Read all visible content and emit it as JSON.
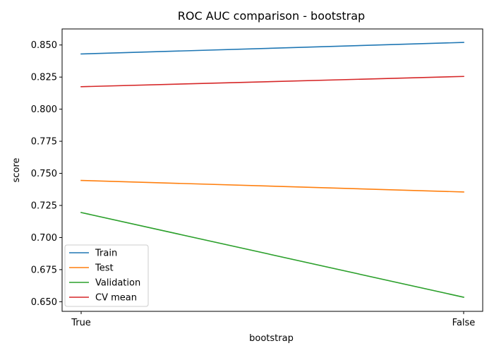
{
  "chart_data": {
    "type": "line",
    "title": "ROC AUC comparison - bootstrap",
    "xlabel": "bootstrap",
    "ylabel": "score",
    "categories": [
      "True",
      "False"
    ],
    "series": [
      {
        "name": "Train",
        "values": [
          0.843,
          0.852
        ],
        "color": "#1f77b4"
      },
      {
        "name": "Test",
        "values": [
          0.7445,
          0.7355
        ],
        "color": "#ff7f0e"
      },
      {
        "name": "Validation",
        "values": [
          0.7195,
          0.6535
        ],
        "color": "#2ca02c"
      },
      {
        "name": "CV mean",
        "values": [
          0.8175,
          0.8255
        ],
        "color": "#d62728"
      }
    ],
    "ylim": [
      0.6425,
      0.8625
    ],
    "yticks": [
      0.65,
      0.675,
      0.7,
      0.725,
      0.75,
      0.775,
      0.8,
      0.825,
      0.85
    ],
    "ytick_labels": [
      "0.650",
      "0.675",
      "0.700",
      "0.725",
      "0.750",
      "0.775",
      "0.800",
      "0.825",
      "0.850"
    ],
    "grid": false,
    "legend_position": "lower-left"
  }
}
